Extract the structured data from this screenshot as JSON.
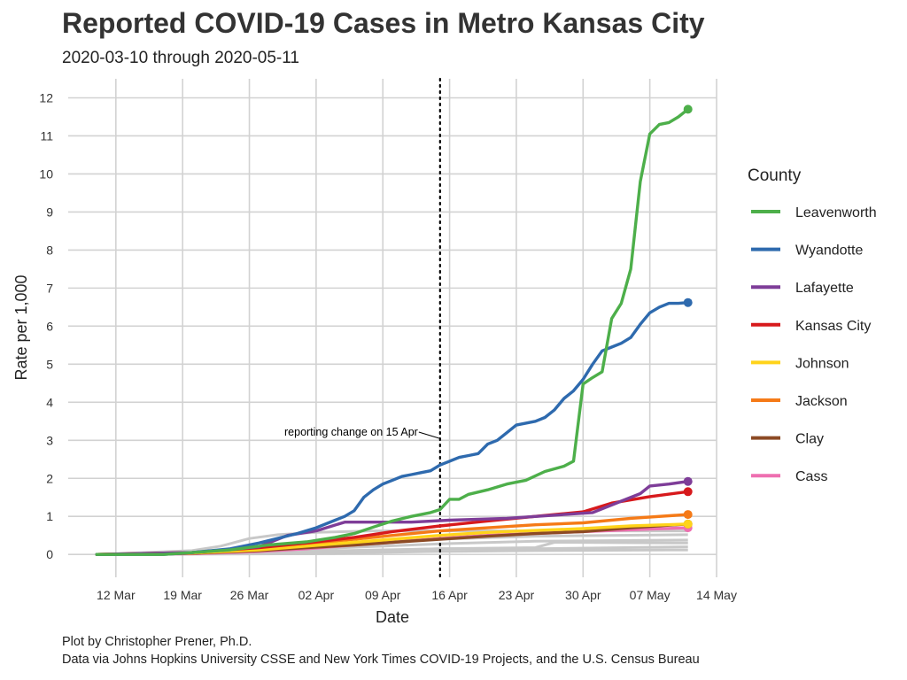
{
  "chart_data": {
    "type": "line",
    "title": "Reported COVID-19 Cases in Metro Kansas City",
    "subtitle": "2020-03-10 through 2020-05-11",
    "xlabel": "Date",
    "ylabel": "Rate per 1,000",
    "caption": [
      "Plot by Christopher Prener, Ph.D.",
      "Data via Johns Hopkins University CSSE and New York Times COVID-19 Projects, and the U.S. Census Bureau"
    ],
    "x_ticks": [
      "12 Mar",
      "19 Mar",
      "26 Mar",
      "02 Apr",
      "09 Apr",
      "16 Apr",
      "23 Apr",
      "30 Apr",
      "07 May",
      "14 May"
    ],
    "x_tick_dates": [
      "2020-03-12",
      "2020-03-19",
      "2020-03-26",
      "2020-04-02",
      "2020-04-09",
      "2020-04-16",
      "2020-04-23",
      "2020-04-30",
      "2020-05-07",
      "2020-05-14"
    ],
    "xlim": [
      "2020-03-07",
      "2020-05-14"
    ],
    "y_ticks": [
      0,
      1,
      2,
      3,
      4,
      5,
      6,
      7,
      8,
      9,
      10,
      11,
      12
    ],
    "ylim": [
      -0.6,
      12.5
    ],
    "grid": true,
    "legend_title": "County",
    "legend_position": "right",
    "annotation": {
      "text": "reporting change on 15 Apr",
      "date": "2020-04-15",
      "y": 3.1,
      "line_style": "dotted"
    },
    "series": [
      {
        "name": "Leavenworth",
        "color": "#4DAF4A",
        "x": [
          "2020-03-10",
          "2020-03-17",
          "2020-03-20",
          "2020-03-24",
          "2020-03-28",
          "2020-04-01",
          "2020-04-04",
          "2020-04-06",
          "2020-04-08",
          "2020-04-10",
          "2020-04-12",
          "2020-04-14",
          "2020-04-15",
          "2020-04-16",
          "2020-04-17",
          "2020-04-18",
          "2020-04-20",
          "2020-04-22",
          "2020-04-24",
          "2020-04-26",
          "2020-04-28",
          "2020-04-29",
          "2020-04-30",
          "2020-05-01",
          "2020-05-02",
          "2020-05-03",
          "2020-05-04",
          "2020-05-05",
          "2020-05-06",
          "2020-05-07",
          "2020-05-08",
          "2020-05-09",
          "2020-05-10",
          "2020-05-11"
        ],
        "y": [
          0.0,
          0.0,
          0.05,
          0.12,
          0.25,
          0.33,
          0.45,
          0.55,
          0.72,
          0.88,
          1.0,
          1.1,
          1.18,
          1.45,
          1.45,
          1.58,
          1.7,
          1.85,
          1.95,
          2.18,
          2.32,
          2.45,
          4.48,
          4.65,
          4.8,
          6.2,
          6.6,
          7.5,
          9.8,
          11.05,
          11.3,
          11.35,
          11.5,
          11.7
        ]
      },
      {
        "name": "Wyandotte",
        "color": "#2E6AAE",
        "x": [
          "2020-03-10",
          "2020-03-17",
          "2020-03-20",
          "2020-03-24",
          "2020-03-27",
          "2020-03-31",
          "2020-04-02",
          "2020-04-04",
          "2020-04-05",
          "2020-04-06",
          "2020-04-07",
          "2020-04-08",
          "2020-04-09",
          "2020-04-10",
          "2020-04-11",
          "2020-04-12",
          "2020-04-13",
          "2020-04-14",
          "2020-04-15",
          "2020-04-16",
          "2020-04-17",
          "2020-04-18",
          "2020-04-19",
          "2020-04-20",
          "2020-04-21",
          "2020-04-22",
          "2020-04-23",
          "2020-04-24",
          "2020-04-25",
          "2020-04-26",
          "2020-04-27",
          "2020-04-28",
          "2020-04-29",
          "2020-04-30",
          "2020-05-01",
          "2020-05-02",
          "2020-05-03",
          "2020-05-04",
          "2020-05-05",
          "2020-05-06",
          "2020-05-07",
          "2020-05-08",
          "2020-05-09",
          "2020-05-10",
          "2020-05-11"
        ],
        "y": [
          0.0,
          0.0,
          0.05,
          0.15,
          0.3,
          0.55,
          0.7,
          0.9,
          1.0,
          1.15,
          1.5,
          1.7,
          1.85,
          1.95,
          2.05,
          2.1,
          2.15,
          2.2,
          2.35,
          2.45,
          2.55,
          2.6,
          2.65,
          2.9,
          3.0,
          3.2,
          3.4,
          3.45,
          3.5,
          3.6,
          3.8,
          4.1,
          4.3,
          4.6,
          5.0,
          5.35,
          5.45,
          5.55,
          5.7,
          6.05,
          6.35,
          6.5,
          6.6,
          6.6,
          6.62
        ]
      },
      {
        "name": "Lafayette",
        "color": "#7E3D98",
        "x": [
          "2020-03-10",
          "2020-03-20",
          "2020-03-27",
          "2020-03-30",
          "2020-04-02",
          "2020-04-05",
          "2020-04-08",
          "2020-04-12",
          "2020-04-16",
          "2020-04-22",
          "2020-04-28",
          "2020-05-01",
          "2020-05-04",
          "2020-05-06",
          "2020-05-07",
          "2020-05-09",
          "2020-05-11"
        ],
        "y": [
          0.0,
          0.05,
          0.2,
          0.5,
          0.62,
          0.85,
          0.85,
          0.85,
          0.9,
          0.95,
          1.05,
          1.1,
          1.4,
          1.6,
          1.8,
          1.85,
          1.92
        ]
      },
      {
        "name": "Kansas City",
        "color": "#D7191C",
        "x": [
          "2020-03-10",
          "2020-03-20",
          "2020-03-27",
          "2020-04-01",
          "2020-04-06",
          "2020-04-10",
          "2020-04-15",
          "2020-04-20",
          "2020-04-25",
          "2020-04-30",
          "2020-05-03",
          "2020-05-07",
          "2020-05-11"
        ],
        "y": [
          0.0,
          0.05,
          0.18,
          0.3,
          0.45,
          0.6,
          0.75,
          0.88,
          1.0,
          1.12,
          1.35,
          1.52,
          1.65
        ]
      },
      {
        "name": "Johnson",
        "color": "#FFD31A",
        "x": [
          "2020-03-10",
          "2020-03-20",
          "2020-03-27",
          "2020-04-01",
          "2020-04-06",
          "2020-04-10",
          "2020-04-15",
          "2020-04-20",
          "2020-04-25",
          "2020-04-30",
          "2020-05-05",
          "2020-05-11"
        ],
        "y": [
          0.0,
          0.04,
          0.12,
          0.22,
          0.32,
          0.4,
          0.5,
          0.58,
          0.63,
          0.68,
          0.75,
          0.8
        ]
      },
      {
        "name": "Jackson",
        "color": "#F57A17",
        "x": [
          "2020-03-10",
          "2020-03-20",
          "2020-03-27",
          "2020-04-01",
          "2020-04-06",
          "2020-04-10",
          "2020-04-15",
          "2020-04-20",
          "2020-04-25",
          "2020-04-30",
          "2020-05-05",
          "2020-05-11"
        ],
        "y": [
          0.0,
          0.04,
          0.15,
          0.28,
          0.4,
          0.5,
          0.62,
          0.7,
          0.78,
          0.83,
          0.95,
          1.05
        ]
      },
      {
        "name": "Clay",
        "color": "#8C4A24",
        "x": [
          "2020-03-10",
          "2020-03-20",
          "2020-03-27",
          "2020-04-01",
          "2020-04-06",
          "2020-04-10",
          "2020-04-15",
          "2020-04-20",
          "2020-04-25",
          "2020-04-30",
          "2020-05-05",
          "2020-05-11"
        ],
        "y": [
          0.0,
          0.03,
          0.1,
          0.18,
          0.25,
          0.32,
          0.4,
          0.48,
          0.55,
          0.6,
          0.7,
          0.8
        ]
      },
      {
        "name": "Cass",
        "color": "#EE6FB0",
        "x": [
          "2020-03-10",
          "2020-03-20",
          "2020-03-27",
          "2020-04-01",
          "2020-04-06",
          "2020-04-10",
          "2020-04-15",
          "2020-04-20",
          "2020-04-25",
          "2020-04-30",
          "2020-05-05",
          "2020-05-11"
        ],
        "y": [
          0.0,
          0.02,
          0.08,
          0.15,
          0.25,
          0.32,
          0.42,
          0.5,
          0.55,
          0.6,
          0.65,
          0.7
        ]
      }
    ],
    "background_series": {
      "color": "#C8C8C8",
      "lines": [
        {
          "x": [
            "2020-03-10",
            "2020-03-20",
            "2020-03-23",
            "2020-03-26",
            "2020-03-29",
            "2020-04-02",
            "2020-04-08",
            "2020-04-16",
            "2020-04-25",
            "2020-05-11"
          ],
          "y": [
            0.0,
            0.1,
            0.22,
            0.42,
            0.52,
            0.58,
            0.62,
            0.62,
            0.62,
            0.62
          ]
        },
        {
          "x": [
            "2020-03-10",
            "2020-03-22",
            "2020-03-30",
            "2020-04-05",
            "2020-04-15",
            "2020-04-25",
            "2020-05-11"
          ],
          "y": [
            0.0,
            0.05,
            0.15,
            0.3,
            0.4,
            0.48,
            0.52
          ]
        },
        {
          "x": [
            "2020-03-10",
            "2020-03-25",
            "2020-04-05",
            "2020-04-15",
            "2020-04-25",
            "2020-05-11"
          ],
          "y": [
            0.0,
            0.05,
            0.18,
            0.28,
            0.35,
            0.38
          ]
        },
        {
          "x": [
            "2020-03-10",
            "2020-03-25",
            "2020-04-05",
            "2020-04-15",
            "2020-04-25",
            "2020-04-27",
            "2020-05-11"
          ],
          "y": [
            0.0,
            0.05,
            0.1,
            0.15,
            0.18,
            0.32,
            0.3
          ]
        },
        {
          "x": [
            "2020-03-10",
            "2020-03-28",
            "2020-04-05",
            "2020-04-15",
            "2020-04-25",
            "2020-05-11"
          ],
          "y": [
            0.0,
            0.03,
            0.08,
            0.15,
            0.15,
            0.2
          ]
        },
        {
          "x": [
            "2020-03-10",
            "2020-04-01",
            "2020-04-15",
            "2020-04-25",
            "2020-05-11"
          ],
          "y": [
            0.0,
            0.02,
            0.08,
            0.1,
            0.12
          ]
        }
      ]
    }
  }
}
